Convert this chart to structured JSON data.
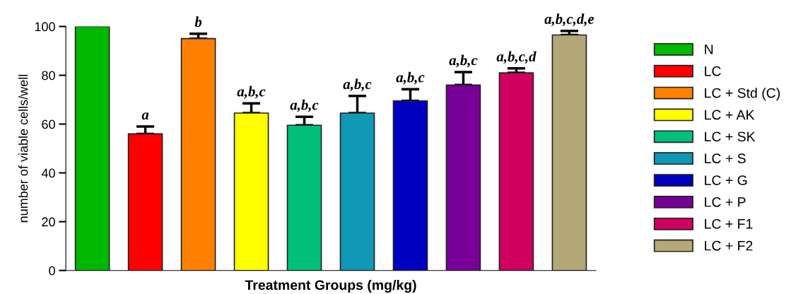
{
  "chart_data": {
    "type": "bar",
    "xlabel": "Treatment Groups (mg/kg)",
    "ylabel": "number of viable cells/well",
    "categories": [
      null,
      null,
      null,
      null,
      null,
      null,
      null,
      null,
      null,
      null
    ],
    "series": [
      {
        "name": "N",
        "color": "#00b800",
        "values": [
          100,
          null,
          null,
          null,
          null,
          null,
          null,
          null,
          null,
          null
        ]
      },
      {
        "name": "LC",
        "color": "#ff0000",
        "values": [
          null,
          56,
          null,
          null,
          null,
          null,
          null,
          null,
          null,
          null
        ],
        "errors": [
          null,
          3,
          null,
          null,
          null,
          null,
          null,
          null,
          null,
          null
        ],
        "value_labels": [
          null,
          "a",
          null,
          null,
          null,
          null,
          null,
          null,
          null,
          null
        ]
      },
      {
        "name": "LC + Std (C)",
        "color": "#ff8000",
        "values": [
          null,
          null,
          95,
          null,
          null,
          null,
          null,
          null,
          null,
          null
        ],
        "errors": [
          null,
          null,
          2,
          null,
          null,
          null,
          null,
          null,
          null,
          null
        ],
        "value_labels": [
          null,
          null,
          "b",
          null,
          null,
          null,
          null,
          null,
          null,
          null
        ]
      },
      {
        "name": "LC + AK",
        "color": "#ffff00",
        "values": [
          null,
          null,
          null,
          64.5,
          null,
          null,
          null,
          null,
          null,
          null
        ],
        "errors": [
          null,
          null,
          null,
          4,
          null,
          null,
          null,
          null,
          null,
          null
        ],
        "value_labels": [
          null,
          null,
          null,
          "a,b,c",
          null,
          null,
          null,
          null,
          null,
          null
        ]
      },
      {
        "name": "LC + SK",
        "color": "#00c078",
        "values": [
          null,
          null,
          null,
          null,
          59.5,
          null,
          null,
          null,
          null,
          null
        ],
        "errors": [
          null,
          null,
          null,
          null,
          3.5,
          null,
          null,
          null,
          null,
          null
        ],
        "value_labels": [
          null,
          null,
          null,
          null,
          "a,b,c",
          null,
          null,
          null,
          null,
          null
        ]
      },
      {
        "name": "LC + S",
        "color": "#1098b4",
        "values": [
          null,
          null,
          null,
          null,
          null,
          64.5,
          null,
          null,
          null,
          null
        ],
        "errors": [
          null,
          null,
          null,
          null,
          null,
          7,
          null,
          null,
          null,
          null
        ],
        "value_labels": [
          null,
          null,
          null,
          null,
          null,
          "a,b,c",
          null,
          null,
          null,
          null
        ]
      },
      {
        "name": "LC + G",
        "color": "#0000c0",
        "values": [
          null,
          null,
          null,
          null,
          null,
          null,
          69.5,
          null,
          null,
          null
        ],
        "errors": [
          null,
          null,
          null,
          null,
          null,
          null,
          4.8,
          null,
          null,
          null
        ],
        "value_labels": [
          null,
          null,
          null,
          null,
          null,
          null,
          "a,b,c",
          null,
          null,
          null
        ]
      },
      {
        "name": "LC + P",
        "color": "#780098",
        "values": [
          null,
          null,
          null,
          null,
          null,
          null,
          null,
          76,
          null,
          null
        ],
        "errors": [
          null,
          null,
          null,
          null,
          null,
          null,
          null,
          5.3,
          null,
          null
        ],
        "value_labels": [
          null,
          null,
          null,
          null,
          null,
          null,
          null,
          "a,b,c",
          null,
          null
        ]
      },
      {
        "name": "LC + F1",
        "color": "#d00060",
        "values": [
          null,
          null,
          null,
          null,
          null,
          null,
          null,
          null,
          81,
          null
        ],
        "errors": [
          null,
          null,
          null,
          null,
          null,
          null,
          null,
          null,
          1.8,
          null
        ],
        "value_labels": [
          null,
          null,
          null,
          null,
          null,
          null,
          null,
          null,
          "a,b,c,d",
          null
        ]
      },
      {
        "name": "LC + F2",
        "color": "#b4a878",
        "values": [
          null,
          null,
          null,
          null,
          null,
          null,
          null,
          null,
          null,
          96.5
        ],
        "errors": [
          null,
          null,
          null,
          null,
          null,
          null,
          null,
          null,
          null,
          1.7
        ],
        "value_labels": [
          null,
          null,
          null,
          null,
          null,
          null,
          null,
          null,
          null,
          "a,b,c,d,e"
        ]
      }
    ],
    "ylim": [
      0,
      100
    ],
    "yticks": [
      0,
      20,
      40,
      60,
      80,
      100
    ],
    "grid": false,
    "legend": "right"
  }
}
